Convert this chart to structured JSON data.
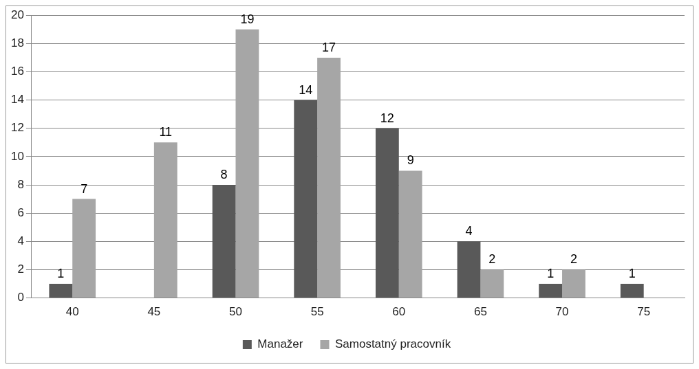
{
  "chart_data": {
    "type": "bar",
    "categories": [
      "40",
      "45",
      "50",
      "55",
      "60",
      "65",
      "70",
      "75"
    ],
    "series": [
      {
        "name": "Manažer",
        "color": "#595959",
        "values": [
          1,
          null,
          8,
          14,
          12,
          4,
          1,
          1
        ]
      },
      {
        "name": "Samostatný pracovník",
        "color": "#a6a6a6",
        "values": [
          7,
          11,
          19,
          17,
          9,
          2,
          2,
          null
        ]
      }
    ],
    "ylim": [
      0,
      20
    ],
    "yticks": [
      0,
      2,
      4,
      6,
      8,
      10,
      12,
      14,
      16,
      18,
      20
    ],
    "grid": "y",
    "legend": "bottom",
    "data_labels": true
  }
}
